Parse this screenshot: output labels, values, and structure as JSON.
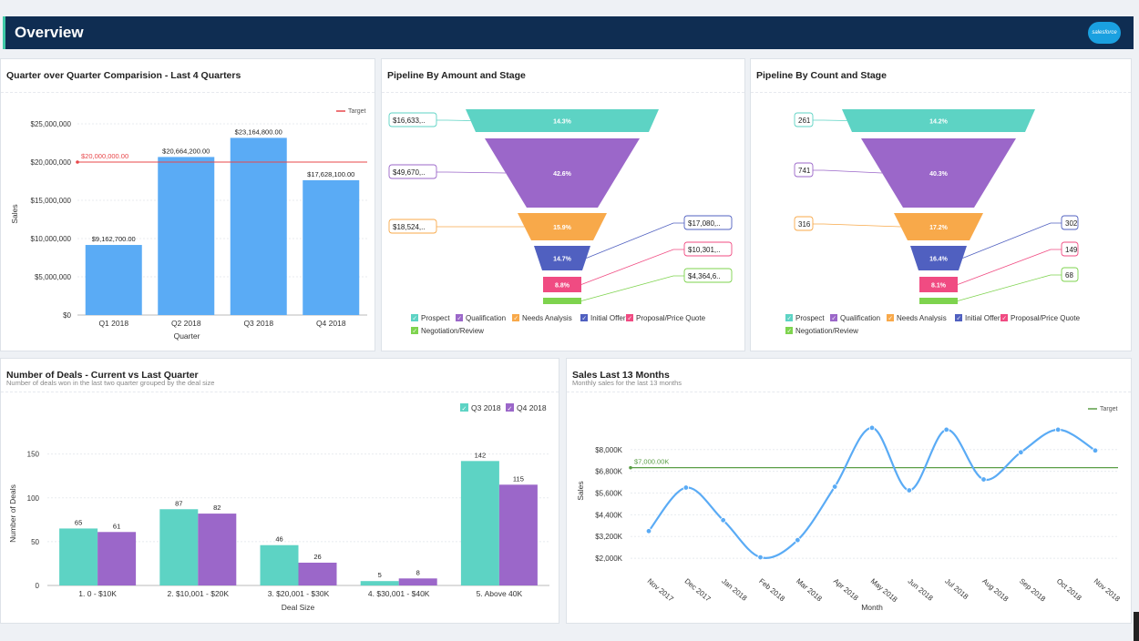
{
  "header": {
    "title": "Overview",
    "logo": "salesforce"
  },
  "colors": {
    "blue": "#5aabf5",
    "teal": "#5dd3c4",
    "purple": "#9b67c9",
    "orange": "#f8a94a",
    "indigo": "#5060c0",
    "pink": "#f04b82",
    "green": "#7ed34e",
    "target_red": "#e8474a",
    "target_green": "#5a9e46"
  },
  "chart_data": [
    {
      "id": "qoq",
      "type": "bar",
      "title": "Quarter over Quarter Comparision - Last 4 Quarters",
      "xlabel": "Quarter",
      "ylabel": "Sales",
      "categories": [
        "Q1 2018",
        "Q2 2018",
        "Q3 2018",
        "Q4 2018"
      ],
      "values": [
        9162700,
        20664200,
        23164800,
        17628100
      ],
      "value_labels": [
        "$9,162,700.00",
        "$20,664,200.00",
        "$23,164,800.00",
        "$17,628,100.00"
      ],
      "yticks": [
        0,
        5000000,
        10000000,
        15000000,
        20000000,
        25000000
      ],
      "ytick_labels": [
        "$0",
        "$5,000,000",
        "$10,000,000",
        "$15,000,000",
        "$20,000,000",
        "$25,000,000"
      ],
      "ylim": [
        0,
        25000000
      ],
      "target": {
        "value": 20000000,
        "label": "$20,000,000.00",
        "legend": "Target"
      }
    },
    {
      "id": "pipe_amount",
      "type": "funnel",
      "title": "Pipeline By Amount and Stage",
      "stages": [
        {
          "name": "Prospect",
          "percent": "14.3%",
          "value": "$16,633,..",
          "color": "#5dd3c4"
        },
        {
          "name": "Qualification",
          "percent": "42.6%",
          "value": "$49,670,..",
          "color": "#9b67c9"
        },
        {
          "name": "Needs Analysis",
          "percent": "15.9%",
          "value": "$18,524,..",
          "color": "#f8a94a"
        },
        {
          "name": "Initial Offer",
          "percent": "14.7%",
          "value": "$17,080,..",
          "color": "#5060c0"
        },
        {
          "name": "Proposal/Price Quote",
          "percent": "8.8%",
          "value": "$10,301,..",
          "color": "#f04b82"
        },
        {
          "name": "Negotiation/Review",
          "percent": "",
          "value": "$4,364,6..",
          "color": "#7ed34e"
        }
      ]
    },
    {
      "id": "pipe_count",
      "type": "funnel",
      "title": "Pipeline By Count and Stage",
      "stages": [
        {
          "name": "Prospect",
          "percent": "14.2%",
          "value": "261",
          "color": "#5dd3c4"
        },
        {
          "name": "Qualification",
          "percent": "40.3%",
          "value": "741",
          "color": "#9b67c9"
        },
        {
          "name": "Needs Analysis",
          "percent": "17.2%",
          "value": "316",
          "color": "#f8a94a"
        },
        {
          "name": "Initial Offer",
          "percent": "16.4%",
          "value": "302",
          "color": "#5060c0"
        },
        {
          "name": "Proposal/Price Quote",
          "percent": "8.1%",
          "value": "149",
          "color": "#f04b82"
        },
        {
          "name": "Negotiation/Review",
          "percent": "",
          "value": "68",
          "color": "#7ed34e"
        }
      ]
    },
    {
      "id": "deals",
      "type": "bar",
      "title": "Number of Deals - Current vs Last Quarter",
      "subtitle": "Number of deals won in the last two quarter grouped by the deal size",
      "xlabel": "Deal Size",
      "ylabel": "Number of Deals",
      "categories": [
        "1. 0 - $10K",
        "2. $10,001 - $20K",
        "3. $20,001 - $30K",
        "4. $30,001 - $40K",
        "5. Above 40K"
      ],
      "series": [
        {
          "name": "Q3 2018",
          "values": [
            65,
            87,
            46,
            5,
            142
          ],
          "color": "#5dd3c4"
        },
        {
          "name": "Q4 2018",
          "values": [
            61,
            82,
            26,
            8,
            115
          ],
          "color": "#9b67c9"
        }
      ],
      "yticks": [
        0,
        50,
        100,
        150
      ],
      "ylim": [
        0,
        160
      ]
    },
    {
      "id": "sales13",
      "type": "line",
      "title": "Sales Last 13 Months",
      "subtitle": "Monthly sales for the last 13 months",
      "xlabel": "Month",
      "ylabel": "Sales",
      "categories": [
        "Nov 2017",
        "Dec 2017",
        "Jan 2018",
        "Feb 2018",
        "Mar 2018",
        "Apr 2018",
        "May 2018",
        "Jun 2018",
        "Jul 2018",
        "Aug 2018",
        "Sep 2018",
        "Oct 2018",
        "Nov 2018"
      ],
      "values": [
        3500,
        5900,
        4100,
        2050,
        3000,
        5950,
        9200,
        5750,
        9100,
        6350,
        7850,
        9100,
        7950
      ],
      "yticks": [
        2000,
        3200,
        4400,
        5600,
        6800,
        8000
      ],
      "ytick_labels": [
        "$2,000K",
        "$3,200K",
        "$4,400K",
        "$5,600K",
        "$6,800K",
        "$8,000K"
      ],
      "ylim": [
        1200,
        10000
      ],
      "target": {
        "value": 7000,
        "label": "$7,000.00K",
        "legend": "Target"
      }
    }
  ]
}
